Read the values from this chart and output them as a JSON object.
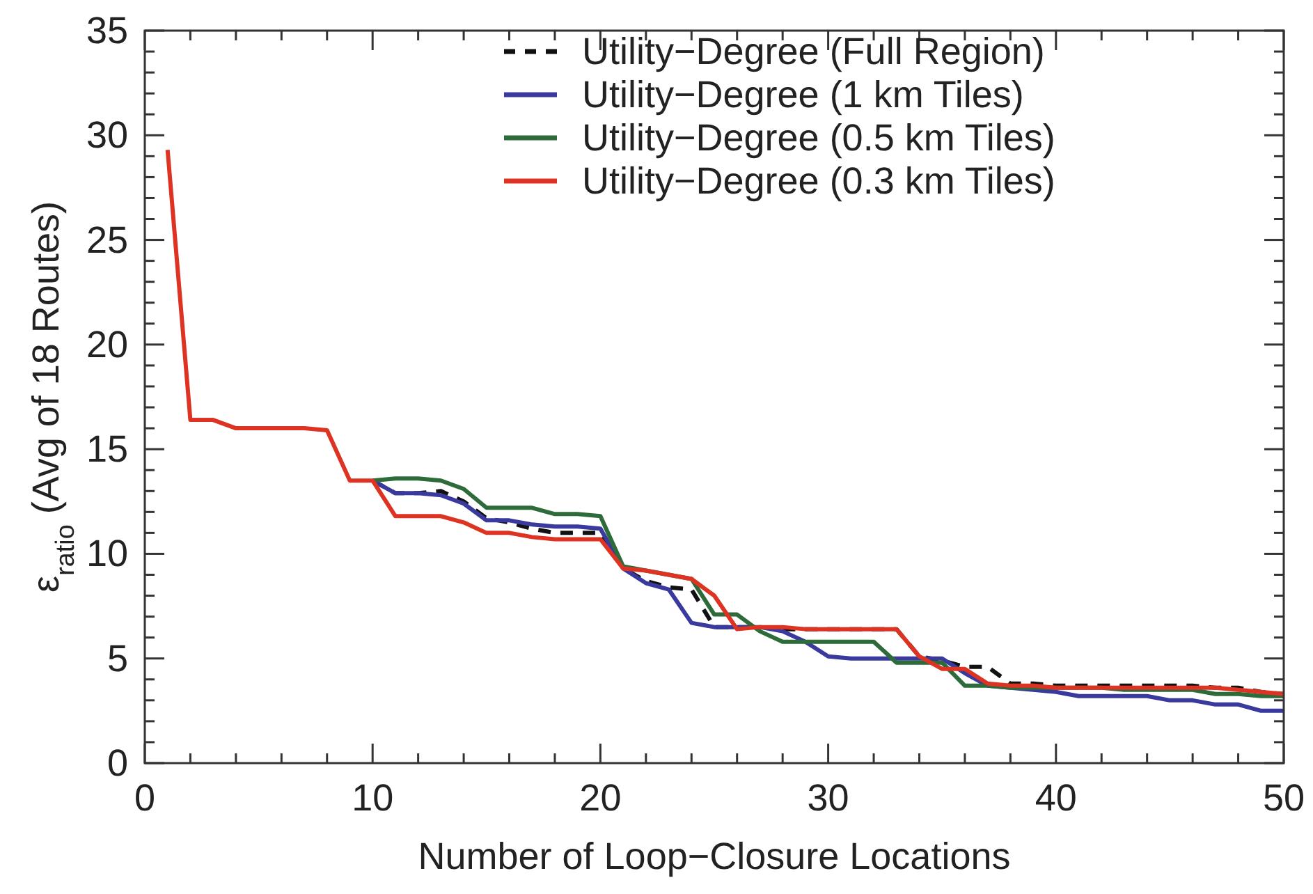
{
  "chart_data": {
    "type": "line",
    "xlabel": "Number of Loop−Closure Locations",
    "ylabel": "ε$_{ratio}$ (Avg of 18 Routes)",
    "x": [
      1,
      2,
      3,
      4,
      5,
      6,
      7,
      8,
      9,
      10,
      11,
      12,
      13,
      14,
      15,
      16,
      17,
      18,
      19,
      20,
      21,
      22,
      23,
      24,
      25,
      26,
      27,
      28,
      29,
      30,
      31,
      32,
      33,
      34,
      35,
      36,
      37,
      38,
      39,
      40,
      41,
      42,
      43,
      44,
      45,
      46,
      47,
      48,
      49,
      50
    ],
    "xlim": [
      0,
      50
    ],
    "ylim": [
      0,
      35
    ],
    "xticks": [
      0,
      {
        "value": 2,
        "label": null
      },
      {
        "value": 4,
        "label": null
      },
      {
        "value": 6,
        "label": null
      },
      {
        "value": 8,
        "label": null
      },
      10,
      {
        "value": 12,
        "label": null
      },
      {
        "value": 14,
        "label": null
      },
      {
        "value": 16,
        "label": null
      },
      {
        "value": 18,
        "label": null
      },
      20,
      {
        "value": 22,
        "label": null
      },
      {
        "value": 24,
        "label": null
      },
      {
        "value": 26,
        "label": null
      },
      {
        "value": 28,
        "label": null
      },
      30,
      {
        "value": 32,
        "label": null
      },
      {
        "value": 34,
        "label": null
      },
      {
        "value": 36,
        "label": null
      },
      {
        "value": 38,
        "label": null
      },
      40,
      {
        "value": 42,
        "label": null
      },
      {
        "value": 44,
        "label": null
      },
      {
        "value": 46,
        "label": null
      },
      {
        "value": 48,
        "label": null
      },
      50
    ],
    "yticks": [
      0,
      {
        "value": 1,
        "label": null
      },
      {
        "value": 2,
        "label": null
      },
      {
        "value": 3,
        "label": null
      },
      {
        "value": 4,
        "label": null
      },
      5,
      {
        "value": 6,
        "label": null
      },
      {
        "value": 7,
        "label": null
      },
      {
        "value": 8,
        "label": null
      },
      {
        "value": 9,
        "label": null
      },
      10,
      {
        "value": 11,
        "label": null
      },
      {
        "value": 12,
        "label": null
      },
      {
        "value": 13,
        "label": null
      },
      {
        "value": 14,
        "label": null
      },
      15,
      {
        "value": 16,
        "label": null
      },
      {
        "value": 17,
        "label": null
      },
      {
        "value": 18,
        "label": null
      },
      {
        "value": 19,
        "label": null
      },
      20,
      {
        "value": 21,
        "label": null
      },
      {
        "value": 22,
        "label": null
      },
      {
        "value": 23,
        "label": null
      },
      {
        "value": 24,
        "label": null
      },
      25,
      {
        "value": 26,
        "label": null
      },
      {
        "value": 27,
        "label": null
      },
      {
        "value": 28,
        "label": null
      },
      {
        "value": 29,
        "label": null
      },
      30,
      {
        "value": 31,
        "label": null
      },
      {
        "value": 32,
        "label": null
      },
      {
        "value": 33,
        "label": null
      },
      {
        "value": 34,
        "label": null
      },
      35
    ],
    "grid": false,
    "legend": "top right",
    "series": [
      {
        "name": "Utility−Degree (Full Region)",
        "color": "#111111",
        "line_style": "dashed",
        "values": [
          null,
          null,
          null,
          null,
          null,
          null,
          null,
          null,
          null,
          13.5,
          12.9,
          12.9,
          13.0,
          12.5,
          11.7,
          11.5,
          11.2,
          11.0,
          11.0,
          11.0,
          9.3,
          8.7,
          8.4,
          8.3,
          6.5,
          6.5,
          6.5,
          6.4,
          6.4,
          6.4,
          6.4,
          6.4,
          6.4,
          5.1,
          4.9,
          4.6,
          4.6,
          3.8,
          3.8,
          3.7,
          3.7,
          3.7,
          3.7,
          3.7,
          3.7,
          3.7,
          3.6,
          3.6,
          3.4,
          3.3
        ]
      },
      {
        "name": "Utility−Degree (1 km Tiles)",
        "color": "#3a3a9e",
        "line_style": "solid",
        "values": [
          null,
          null,
          null,
          null,
          null,
          null,
          null,
          null,
          null,
          13.5,
          12.9,
          12.9,
          12.8,
          12.4,
          11.6,
          11.6,
          11.4,
          11.3,
          11.3,
          11.2,
          9.3,
          8.6,
          8.3,
          6.7,
          6.5,
          6.5,
          6.5,
          6.3,
          5.8,
          5.1,
          5.0,
          5.0,
          5.0,
          5.0,
          5.0,
          4.3,
          3.7,
          3.6,
          3.5,
          3.4,
          3.2,
          3.2,
          3.2,
          3.2,
          3.0,
          3.0,
          2.8,
          2.8,
          2.5,
          2.5
        ]
      },
      {
        "name": "Utility−Degree (0.5 km Tiles)",
        "color": "#2e6b3a",
        "line_style": "solid",
        "values": [
          null,
          null,
          null,
          null,
          null,
          null,
          null,
          null,
          null,
          13.5,
          13.6,
          13.6,
          13.5,
          13.1,
          12.2,
          12.2,
          12.2,
          11.9,
          11.9,
          11.8,
          9.4,
          9.2,
          9.0,
          8.8,
          7.1,
          7.1,
          6.3,
          5.8,
          5.8,
          5.8,
          5.8,
          5.8,
          4.8,
          4.8,
          4.8,
          3.7,
          3.7,
          3.6,
          3.6,
          3.6,
          3.6,
          3.6,
          3.5,
          3.5,
          3.5,
          3.5,
          3.3,
          3.3,
          3.2,
          3.2
        ]
      },
      {
        "name": "Utility−Degree (0.3 km Tiles)",
        "color": "#dd3322",
        "line_style": "solid",
        "values": [
          29.3,
          16.4,
          16.4,
          16.0,
          16.0,
          16.0,
          16.0,
          15.9,
          13.5,
          13.5,
          11.8,
          11.8,
          11.8,
          11.5,
          11.0,
          11.0,
          10.8,
          10.7,
          10.7,
          10.7,
          9.3,
          9.2,
          9.0,
          8.8,
          8.0,
          6.4,
          6.5,
          6.5,
          6.4,
          6.4,
          6.4,
          6.4,
          6.4,
          5.1,
          4.5,
          4.5,
          3.8,
          3.7,
          3.7,
          3.6,
          3.6,
          3.6,
          3.6,
          3.6,
          3.6,
          3.6,
          3.6,
          3.5,
          3.4,
          3.3
        ]
      }
    ]
  }
}
